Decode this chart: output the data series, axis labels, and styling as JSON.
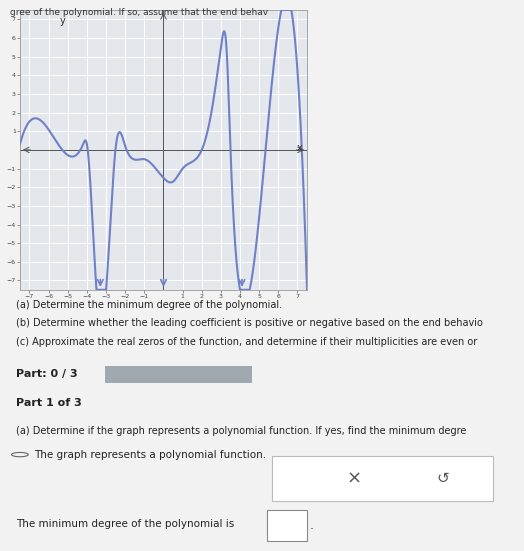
{
  "xlim": [
    -7.5,
    7.5
  ],
  "ylim": [
    -7.5,
    7.5
  ],
  "x_ticks": [
    -7,
    -6,
    -5,
    -4,
    -3,
    -2,
    -1,
    1,
    2,
    3,
    4,
    5,
    6,
    7
  ],
  "y_ticks": [
    -7,
    -6,
    -5,
    -4,
    -3,
    -2,
    -1,
    1,
    2,
    3,
    4,
    5,
    6,
    7
  ],
  "curve_color": "#7080c8",
  "curve_linewidth": 1.5,
  "plot_bg_color": "#e4e8ec",
  "grid_color": "#ffffff",
  "outer_bg": "#f2f2f2",
  "text_lines": [
    "(a) Determine the minimum degree of the polynomial.",
    "(b) Determine whether the leading coefficient is positive or negative based on the end behavio",
    "(c) Approximate the real zeros of the function, and determine if their multiplicities are even or"
  ],
  "part_label": "Part: 0 / 3",
  "part1_label": "Part 1 of 3",
  "part1_text_a": "(a) Determine if the graph represents a polynomial function. If yes, find the minimum degre",
  "part1_radio": "The graph represents a polynomial function.",
  "part1_bottom": "The minimum degree of the polynomial is",
  "top_text": "gree of the polynomial. If so, assume that the end behav",
  "progress_bar_color": "#a0a8b0",
  "part_bg": "#c8cdd2",
  "part1_bg": "#d0d4d8",
  "content_bg": "#f0f0f0"
}
